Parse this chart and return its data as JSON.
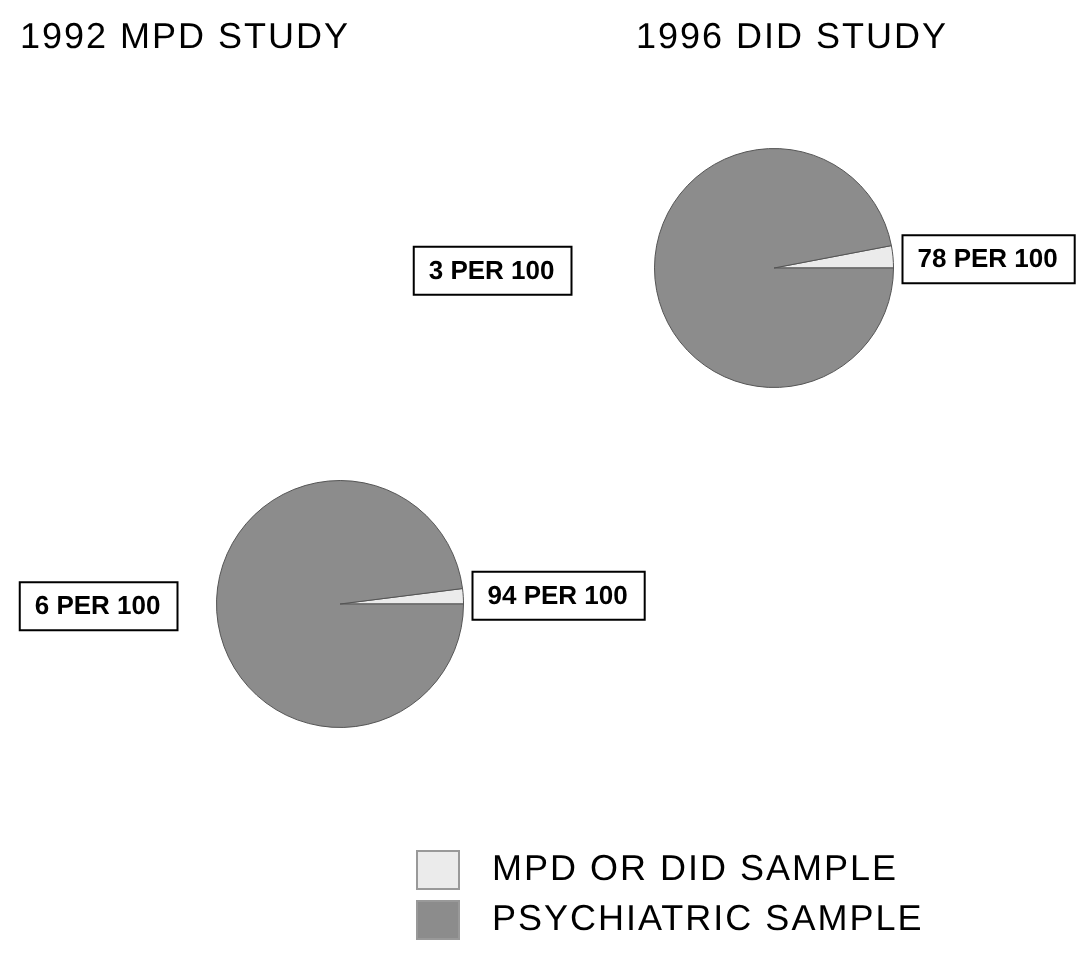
{
  "chart_data": [
    {
      "type": "pie",
      "title": "1992 MPD STUDY",
      "categories": [
        null,
        null
      ],
      "values": [
        2,
        98
      ],
      "annotations": [
        "94 PER 100",
        "6 PER 100"
      ],
      "colors": [
        "#ebebeb",
        "#8c8c8c"
      ]
    },
    {
      "type": "pie",
      "title": "1996 DID STUDY",
      "categories": [
        "MPD OR DID SAMPLE",
        "PSYCHIATRIC SAMPLE"
      ],
      "values": [
        3,
        97
      ],
      "annotations": [
        "78 PER 100",
        "3 PER 100"
      ],
      "colors": [
        "#ebebeb",
        "#8c8c8c"
      ],
      "legend": "bottom"
    }
  ]
}
